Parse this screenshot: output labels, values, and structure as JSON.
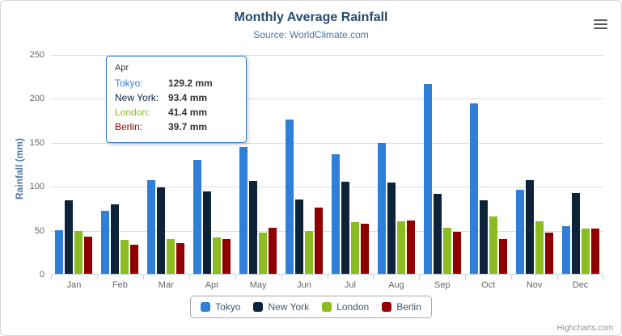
{
  "chart": {
    "title": "Monthly Average Rainfall",
    "subtitle": "Source: WorldClimate.com",
    "y_axis_title": "Rainfall (mm)",
    "credits": "Highcharts.com"
  },
  "chart_data": {
    "type": "bar",
    "title": "Monthly Average Rainfall",
    "subtitle": "Source: WorldClimate.com",
    "xlabel": "",
    "ylabel": "Rainfall (mm)",
    "ylim": [
      0,
      250
    ],
    "yticks": [
      0,
      50,
      100,
      150,
      200,
      250
    ],
    "grid": true,
    "legend_position": "bottom",
    "categories": [
      "Jan",
      "Feb",
      "Mar",
      "Apr",
      "May",
      "Jun",
      "Jul",
      "Aug",
      "Sep",
      "Oct",
      "Nov",
      "Dec"
    ],
    "series": [
      {
        "name": "Tokyo",
        "color": "#2f7ed8",
        "values": [
          49.9,
          71.5,
          106.4,
          129.2,
          144.0,
          176.0,
          135.6,
          148.5,
          216.4,
          194.1,
          95.6,
          54.4
        ]
      },
      {
        "name": "New York",
        "color": "#0d233a",
        "values": [
          83.6,
          78.8,
          98.5,
          93.4,
          106.0,
          84.5,
          105.0,
          104.3,
          91.2,
          83.5,
          106.6,
          92.3
        ]
      },
      {
        "name": "London",
        "color": "#8bbc21",
        "values": [
          48.9,
          38.8,
          39.3,
          41.4,
          47.0,
          48.3,
          59.0,
          59.6,
          52.4,
          65.2,
          59.3,
          51.2
        ]
      },
      {
        "name": "Berlin",
        "color": "#910000",
        "values": [
          42.4,
          33.2,
          34.5,
          39.7,
          52.6,
          75.5,
          57.4,
          60.4,
          47.6,
          39.1,
          46.8,
          51.1
        ]
      }
    ]
  },
  "tooltip": {
    "header": "Apr",
    "rows": [
      {
        "label": "Tokyo:",
        "value": "129.2 mm",
        "color": "#2f7ed8"
      },
      {
        "label": "New York:",
        "value": "93.4 mm",
        "color": "#0d233a"
      },
      {
        "label": "London:",
        "value": "41.4 mm",
        "color": "#8bbc21"
      },
      {
        "label": "Berlin:",
        "value": "39.7 mm",
        "color": "#910000"
      }
    ]
  }
}
